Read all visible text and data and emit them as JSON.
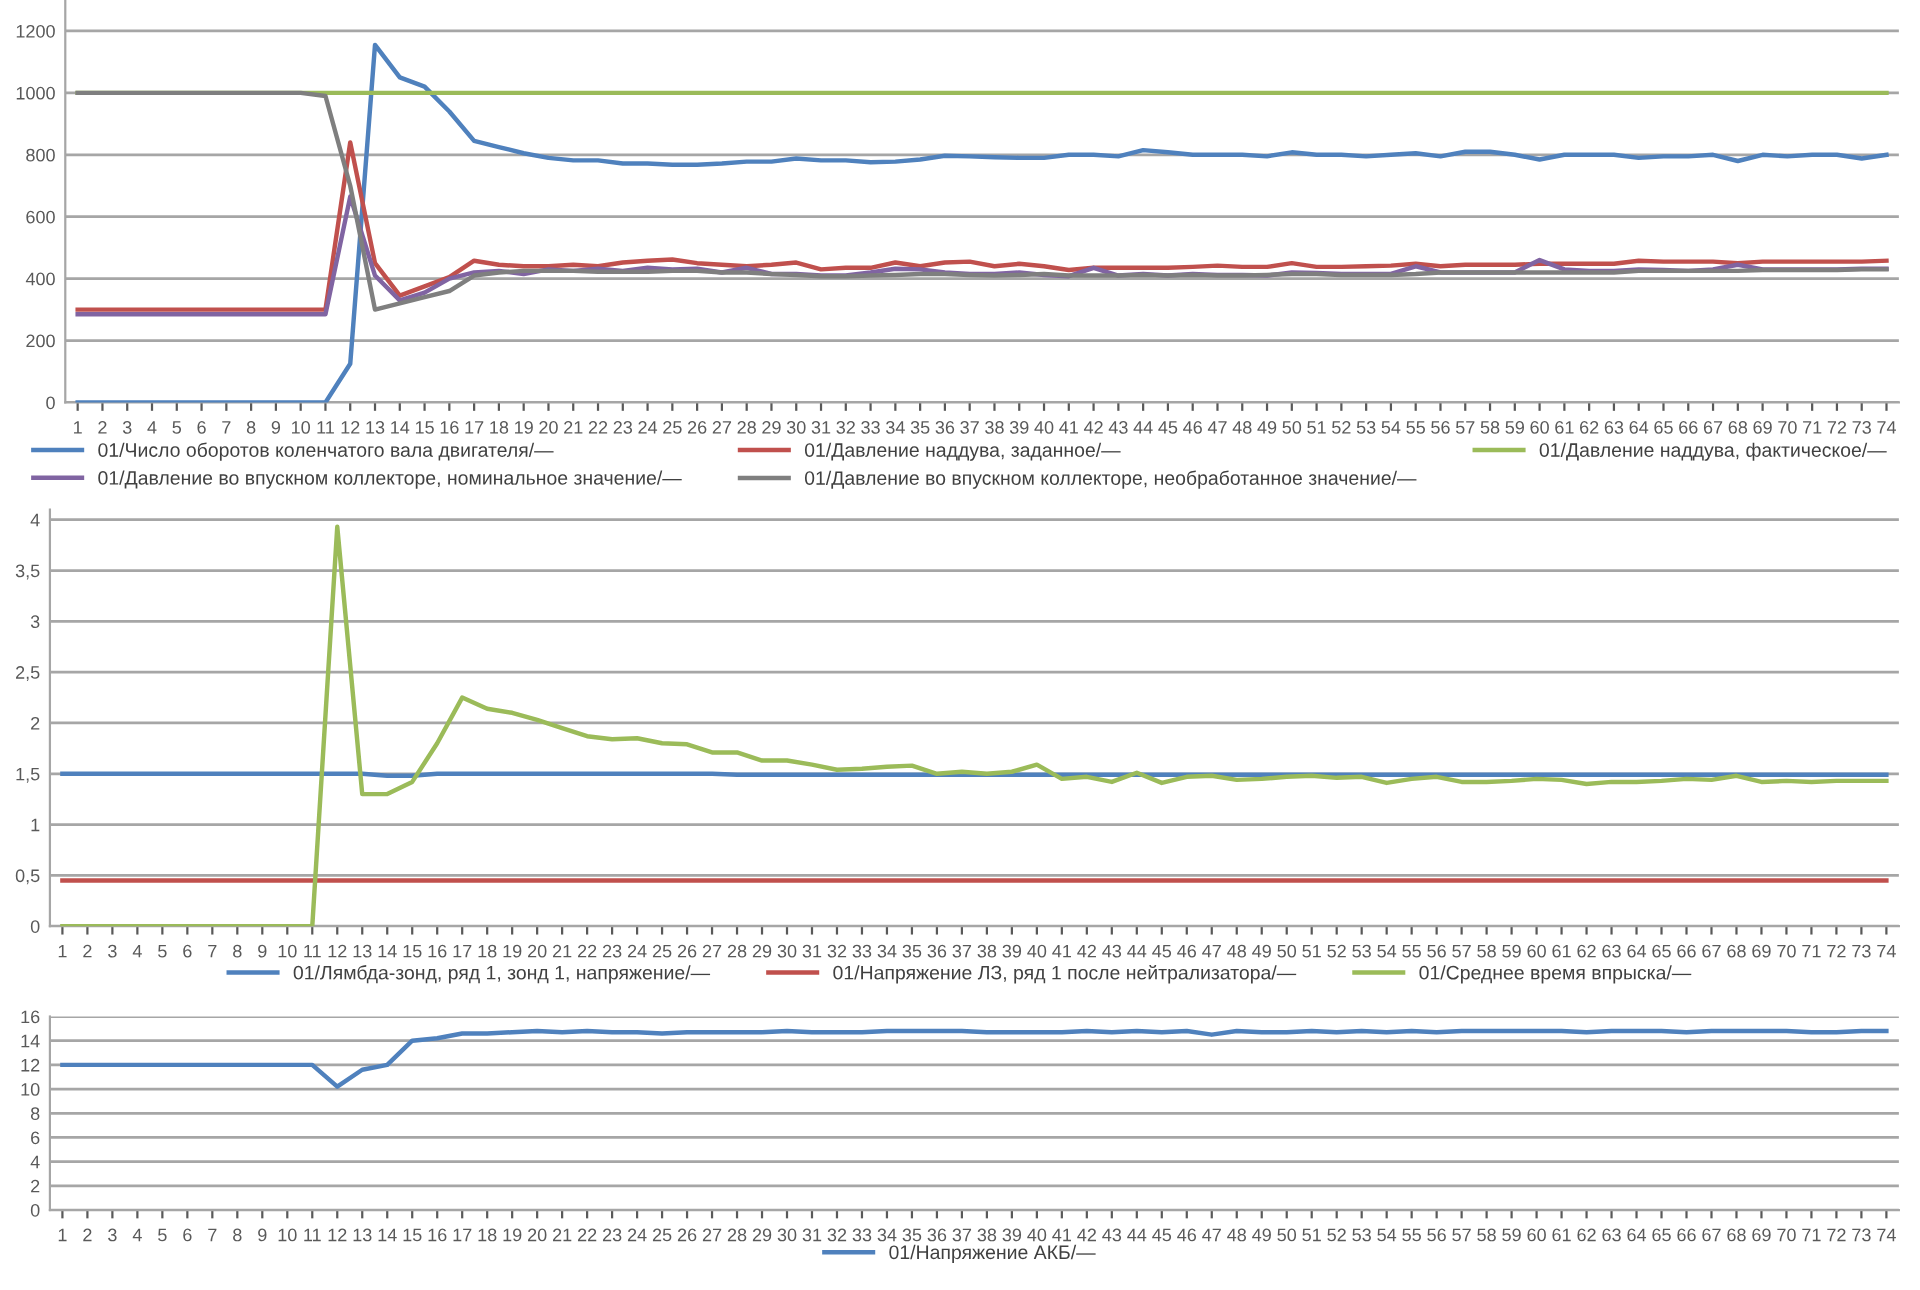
{
  "chart_data": [
    {
      "type": "line",
      "categories": [
        "1",
        "2",
        "3",
        "4",
        "5",
        "6",
        "7",
        "8",
        "9",
        "10",
        "11",
        "12",
        "13",
        "14",
        "15",
        "16",
        "17",
        "18",
        "19",
        "20",
        "21",
        "22",
        "23",
        "24",
        "25",
        "26",
        "27",
        "28",
        "29",
        "30",
        "31",
        "32",
        "33",
        "34",
        "35",
        "36",
        "37",
        "38",
        "39",
        "40",
        "41",
        "42",
        "43",
        "44",
        "45",
        "46",
        "47",
        "48",
        "49",
        "50",
        "51",
        "52",
        "53",
        "54",
        "55",
        "56",
        "57",
        "58",
        "59",
        "60",
        "61",
        "62",
        "63",
        "64",
        "65",
        "66",
        "67",
        "68",
        "69",
        "70",
        "71",
        "72",
        "73",
        "74"
      ],
      "ylim": [
        0,
        1300
      ],
      "yticks": [
        0,
        200,
        400,
        600,
        800,
        1000,
        1200
      ],
      "grid": "y",
      "legend": "bottom",
      "marker": "none",
      "line_style": "solid",
      "series": [
        {
          "name": "01/Число оборотов коленчатого вала двигателя/—",
          "color": "#4f81bd",
          "values": [
            0,
            0,
            0,
            0,
            0,
            0,
            0,
            0,
            0,
            0,
            0,
            125,
            1155,
            1050,
            1020,
            940,
            845,
            825,
            805,
            790,
            782,
            782,
            772,
            772,
            768,
            768,
            772,
            778,
            778,
            788,
            782,
            782,
            776,
            778,
            785,
            797,
            795,
            792,
            790,
            790,
            800,
            800,
            795,
            815,
            808,
            800,
            800,
            800,
            795,
            808,
            800,
            800,
            795,
            800,
            805,
            795,
            810,
            810,
            800,
            785,
            800,
            800,
            800,
            790,
            795,
            795,
            800,
            780,
            800,
            795,
            800,
            800,
            788,
            800
          ]
        },
        {
          "name": "01/Давление наддува, заданное/—",
          "color": "#c0504d",
          "values": [
            300,
            300,
            300,
            300,
            300,
            300,
            300,
            300,
            300,
            300,
            300,
            840,
            450,
            345,
            375,
            405,
            458,
            445,
            440,
            440,
            445,
            440,
            452,
            458,
            462,
            450,
            445,
            440,
            445,
            452,
            430,
            435,
            435,
            452,
            440,
            452,
            455,
            440,
            448,
            440,
            428,
            435,
            435,
            435,
            435,
            438,
            442,
            438,
            438,
            450,
            438,
            438,
            440,
            442,
            448,
            440,
            445,
            445,
            445,
            448,
            448,
            448,
            448,
            458,
            455,
            455,
            455,
            450,
            455,
            455,
            455,
            455,
            455,
            458
          ]
        },
        {
          "name": "01/Давление наддува, фактическое/—",
          "color": "#9bbb59",
          "values": [
            1000,
            1000,
            1000,
            1000,
            1000,
            1000,
            1000,
            1000,
            1000,
            1000,
            1000,
            1000,
            1000,
            1000,
            1000,
            1000,
            1000,
            1000,
            1000,
            1000,
            1000,
            1000,
            1000,
            1000,
            1000,
            1000,
            1000,
            1000,
            1000,
            1000,
            1000,
            1000,
            1000,
            1000,
            1000,
            1000,
            1000,
            1000,
            1000,
            1000,
            1000,
            1000,
            1000,
            1000,
            1000,
            1000,
            1000,
            1000,
            1000,
            1000,
            1000,
            1000,
            1000,
            1000,
            1000,
            1000,
            1000,
            1000,
            1000,
            1000,
            1000,
            1000,
            1000,
            1000,
            1000,
            1000,
            1000,
            1000,
            1000,
            1000,
            1000,
            1000,
            1000,
            1000
          ]
        },
        {
          "name": "01/Давление во впускном коллекторе, номинальное значение/—",
          "color": "#8064a2",
          "values": [
            285,
            285,
            285,
            285,
            285,
            285,
            285,
            285,
            285,
            285,
            285,
            665,
            410,
            330,
            355,
            400,
            420,
            425,
            415,
            430,
            425,
            432,
            425,
            435,
            430,
            432,
            420,
            435,
            415,
            415,
            410,
            410,
            420,
            432,
            430,
            420,
            415,
            415,
            420,
            412,
            408,
            435,
            410,
            415,
            410,
            415,
            412,
            412,
            410,
            420,
            418,
            415,
            415,
            415,
            440,
            420,
            420,
            420,
            420,
            460,
            430,
            425,
            425,
            430,
            428,
            425,
            430,
            445,
            430,
            430,
            430,
            430,
            432,
            432
          ]
        },
        {
          "name": "01/Давление во впускном коллекторе, необработанное значение/—",
          "color": "#7f7f7f",
          "values": [
            1000,
            1000,
            1000,
            1000,
            1000,
            1000,
            1000,
            1000,
            1000,
            1000,
            990,
            700,
            300,
            320,
            340,
            360,
            410,
            420,
            425,
            425,
            425,
            422,
            422,
            422,
            425,
            425,
            420,
            420,
            415,
            412,
            408,
            408,
            410,
            412,
            415,
            415,
            412,
            410,
            412,
            415,
            410,
            410,
            410,
            412,
            410,
            412,
            410,
            410,
            412,
            415,
            415,
            412,
            412,
            412,
            415,
            420,
            420,
            420,
            420,
            420,
            420,
            420,
            420,
            425,
            425,
            425,
            425,
            425,
            428,
            428,
            428,
            428,
            430,
            430
          ]
        }
      ]
    },
    {
      "type": "line",
      "categories": [
        "1",
        "2",
        "3",
        "4",
        "5",
        "6",
        "7",
        "8",
        "9",
        "10",
        "11",
        "12",
        "13",
        "14",
        "15",
        "16",
        "17",
        "18",
        "19",
        "20",
        "21",
        "22",
        "23",
        "24",
        "25",
        "26",
        "27",
        "28",
        "29",
        "30",
        "31",
        "32",
        "33",
        "34",
        "35",
        "36",
        "37",
        "38",
        "39",
        "40",
        "41",
        "42",
        "43",
        "44",
        "45",
        "46",
        "47",
        "48",
        "49",
        "50",
        "51",
        "52",
        "53",
        "54",
        "55",
        "56",
        "57",
        "58",
        "59",
        "60",
        "61",
        "62",
        "63",
        "64",
        "65",
        "66",
        "67",
        "68",
        "69",
        "70",
        "71",
        "72",
        "73",
        "74"
      ],
      "ylim": [
        0,
        4.1
      ],
      "yticks": [
        0,
        {
          "value": 0.5,
          "label": "0,5"
        },
        1,
        {
          "value": 1.5,
          "label": "1,5"
        },
        2,
        {
          "value": 2.5,
          "label": "2,5"
        },
        3,
        {
          "value": 3.5,
          "label": "3,5"
        },
        4
      ],
      "grid": "y",
      "legend": "bottom",
      "marker": "none",
      "line_style": "solid",
      "series": [
        {
          "name": "01/Лямбда-зонд, ряд 1, зонд 1, напряжение/—",
          "color": "#4f81bd",
          "values": [
            1.5,
            1.5,
            1.5,
            1.5,
            1.5,
            1.5,
            1.5,
            1.5,
            1.5,
            1.5,
            1.5,
            1.5,
            1.5,
            1.48,
            1.48,
            1.5,
            1.5,
            1.5,
            1.5,
            1.5,
            1.5,
            1.5,
            1.5,
            1.5,
            1.5,
            1.5,
            1.5,
            1.49,
            1.49,
            1.49,
            1.49,
            1.49,
            1.49,
            1.49,
            1.49,
            1.49,
            1.49,
            1.49,
            1.49,
            1.49,
            1.49,
            1.49,
            1.49,
            1.49,
            1.49,
            1.49,
            1.49,
            1.49,
            1.49,
            1.49,
            1.49,
            1.49,
            1.49,
            1.49,
            1.49,
            1.49,
            1.49,
            1.49,
            1.49,
            1.49,
            1.49,
            1.49,
            1.49,
            1.49,
            1.49,
            1.49,
            1.49,
            1.49,
            1.49,
            1.49,
            1.49,
            1.49,
            1.49,
            1.49
          ]
        },
        {
          "name": "01/Напряжение ЛЗ, ряд 1 после нейтрализатора/—",
          "color": "#c0504d",
          "values": [
            0.45,
            0.45,
            0.45,
            0.45,
            0.45,
            0.45,
            0.45,
            0.45,
            0.45,
            0.45,
            0.45,
            0.45,
            0.45,
            0.45,
            0.45,
            0.45,
            0.45,
            0.45,
            0.45,
            0.45,
            0.45,
            0.45,
            0.45,
            0.45,
            0.45,
            0.45,
            0.45,
            0.45,
            0.45,
            0.45,
            0.45,
            0.45,
            0.45,
            0.45,
            0.45,
            0.45,
            0.45,
            0.45,
            0.45,
            0.45,
            0.45,
            0.45,
            0.45,
            0.45,
            0.45,
            0.45,
            0.45,
            0.45,
            0.45,
            0.45,
            0.45,
            0.45,
            0.45,
            0.45,
            0.45,
            0.45,
            0.45,
            0.45,
            0.45,
            0.45,
            0.45,
            0.45,
            0.45,
            0.45,
            0.45,
            0.45,
            0.45,
            0.45,
            0.45,
            0.45,
            0.45,
            0.45,
            0.45,
            0.45
          ]
        },
        {
          "name": "01/Среднее время впрыска/—",
          "color": "#9bbb59",
          "values": [
            0,
            0,
            0,
            0,
            0,
            0,
            0,
            0,
            0,
            0,
            0,
            3.93,
            1.3,
            1.3,
            1.42,
            1.8,
            2.25,
            2.14,
            2.1,
            2.03,
            1.95,
            1.87,
            1.84,
            1.85,
            1.8,
            1.79,
            1.71,
            1.71,
            1.63,
            1.63,
            1.59,
            1.54,
            1.55,
            1.57,
            1.58,
            1.5,
            1.52,
            1.5,
            1.52,
            1.59,
            1.45,
            1.47,
            1.42,
            1.51,
            1.41,
            1.47,
            1.48,
            1.44,
            1.45,
            1.47,
            1.48,
            1.46,
            1.47,
            1.41,
            1.45,
            1.47,
            1.42,
            1.42,
            1.43,
            1.45,
            1.44,
            1.4,
            1.42,
            1.42,
            1.43,
            1.45,
            1.44,
            1.48,
            1.42,
            1.43,
            1.42,
            1.43,
            1.43,
            1.43
          ]
        }
      ]
    },
    {
      "type": "line",
      "categories": [
        "1",
        "2",
        "3",
        "4",
        "5",
        "6",
        "7",
        "8",
        "9",
        "10",
        "11",
        "12",
        "13",
        "14",
        "15",
        "16",
        "17",
        "18",
        "19",
        "20",
        "21",
        "22",
        "23",
        "24",
        "25",
        "26",
        "27",
        "28",
        "29",
        "30",
        "31",
        "32",
        "33",
        "34",
        "35",
        "36",
        "37",
        "38",
        "39",
        "40",
        "41",
        "42",
        "43",
        "44",
        "45",
        "46",
        "47",
        "48",
        "49",
        "50",
        "51",
        "52",
        "53",
        "54",
        "55",
        "56",
        "57",
        "58",
        "59",
        "60",
        "61",
        "62",
        "63",
        "64",
        "65",
        "66",
        "67",
        "68",
        "69",
        "70",
        "71",
        "72",
        "73",
        "74"
      ],
      "ylim": [
        0,
        16
      ],
      "yticks": [
        0,
        2,
        4,
        6,
        8,
        10,
        12,
        14,
        16
      ],
      "grid": "y",
      "legend": "bottom",
      "marker": "none",
      "line_style": "solid",
      "series": [
        {
          "name": "01/Напряжение АКБ/—",
          "color": "#4f81bd",
          "values": [
            12,
            12,
            12,
            12,
            12,
            12,
            12,
            12,
            12,
            12,
            12,
            10.2,
            11.6,
            12,
            14,
            14.2,
            14.6,
            14.6,
            14.7,
            14.8,
            14.7,
            14.8,
            14.7,
            14.7,
            14.6,
            14.7,
            14.7,
            14.7,
            14.7,
            14.8,
            14.7,
            14.7,
            14.7,
            14.8,
            14.8,
            14.8,
            14.8,
            14.7,
            14.7,
            14.7,
            14.7,
            14.8,
            14.7,
            14.8,
            14.7,
            14.8,
            14.5,
            14.8,
            14.7,
            14.7,
            14.8,
            14.7,
            14.8,
            14.7,
            14.8,
            14.7,
            14.8,
            14.8,
            14.8,
            14.8,
            14.8,
            14.7,
            14.8,
            14.8,
            14.8,
            14.7,
            14.8,
            14.8,
            14.8,
            14.8,
            14.7,
            14.7,
            14.8,
            14.8
          ]
        }
      ]
    }
  ]
}
